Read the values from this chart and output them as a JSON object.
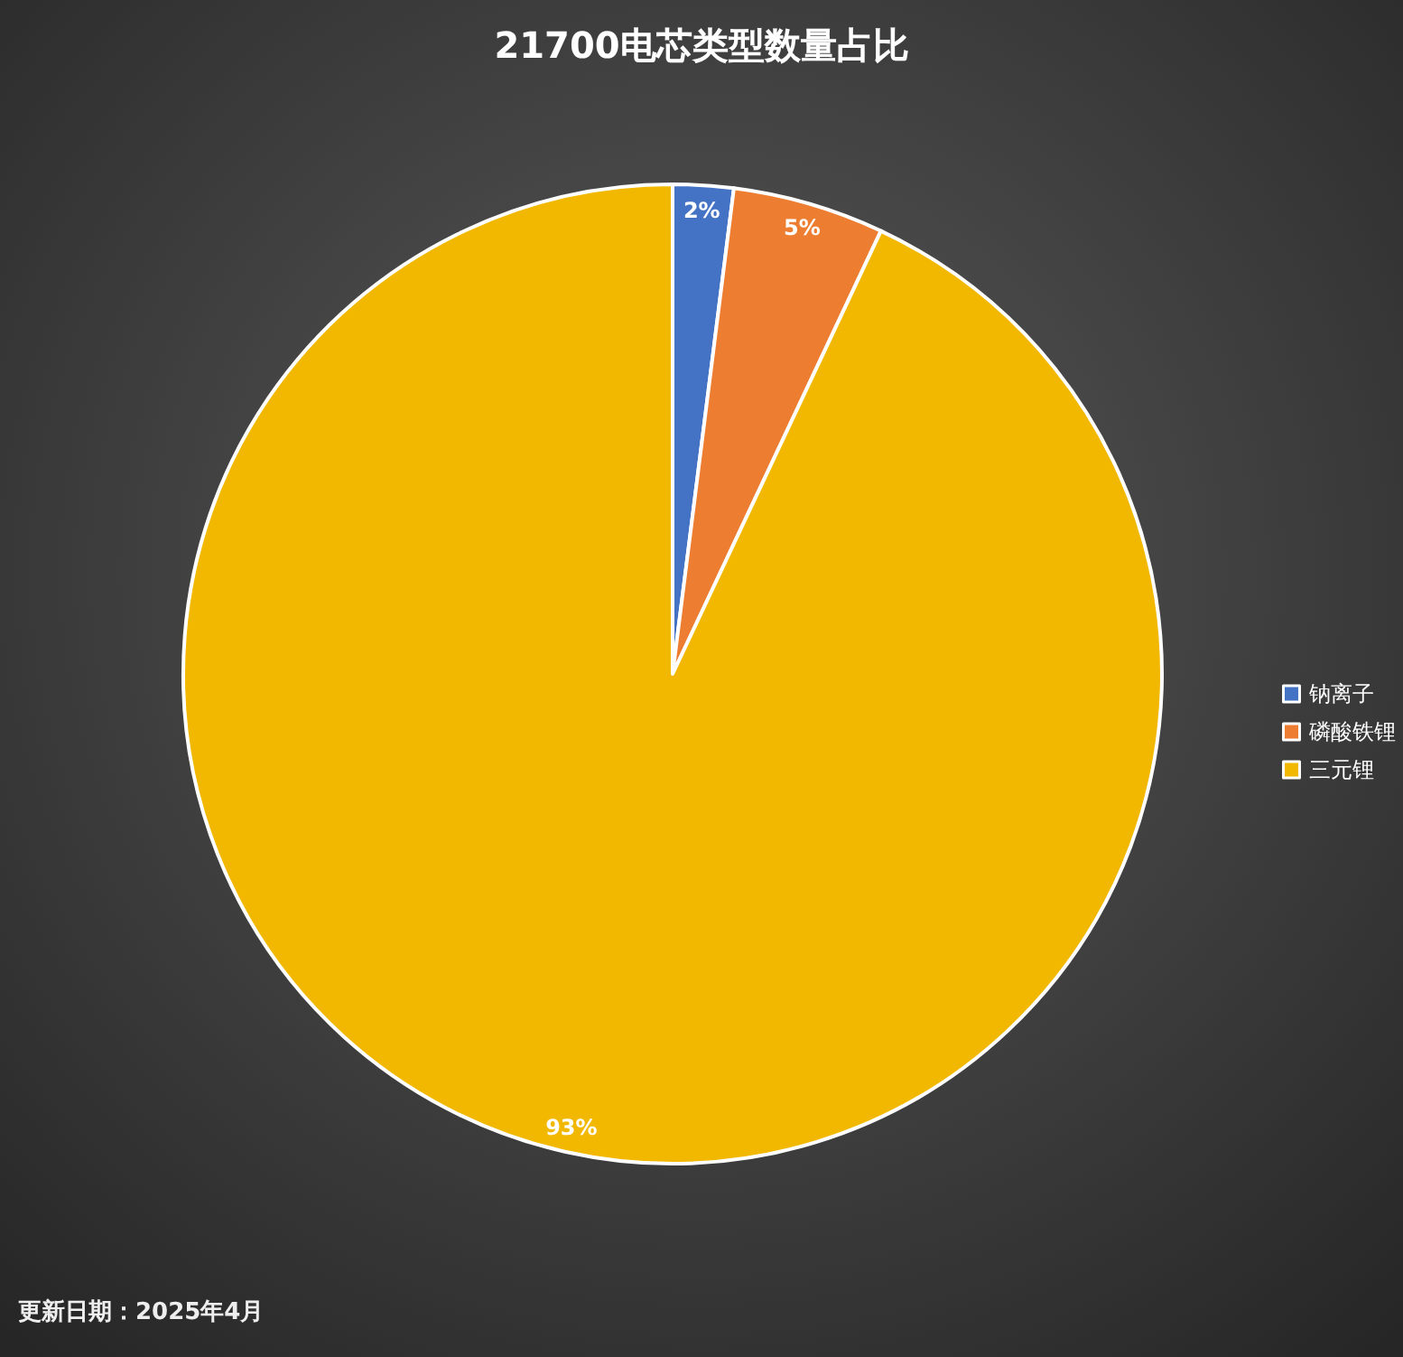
{
  "chart_data": {
    "type": "pie",
    "title": "21700电芯类型数量占比",
    "categories": [
      "钠离子",
      "磷酸铁锂",
      "三元锂"
    ],
    "values": [
      2,
      5,
      93
    ],
    "colors": [
      "#4472c4",
      "#ed7d31",
      "#f2b800"
    ],
    "value_labels": [
      "2%",
      "5%",
      "93%"
    ],
    "legend": "right",
    "annotations": [
      "更新日期：2025年4月"
    ]
  }
}
